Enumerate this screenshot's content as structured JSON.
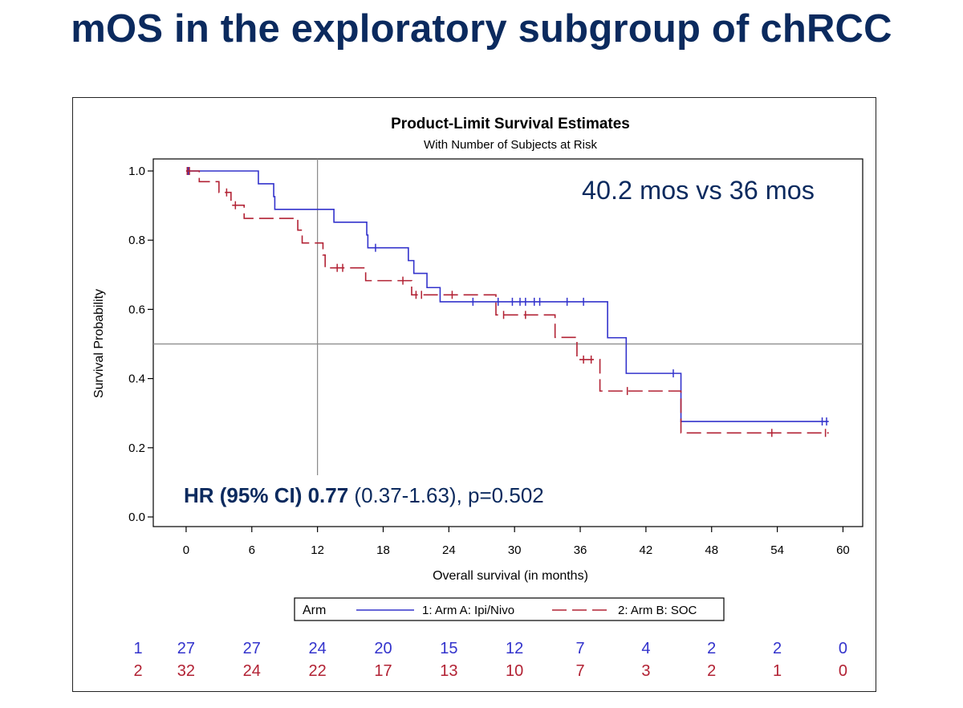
{
  "slide": {
    "title": "mOS in the exploratory subgroup of chRCC"
  },
  "chart_data": {
    "type": "line",
    "title": "Product-Limit Survival Estimates",
    "subtitle": "With Number of Subjects at Risk",
    "xlabel": "Overall survival (in months)",
    "ylabel": "Survival Probability",
    "xlim": [
      0,
      60
    ],
    "ylim": [
      0.0,
      1.0
    ],
    "xticks": [
      0,
      6,
      12,
      18,
      24,
      30,
      36,
      42,
      48,
      54,
      60
    ],
    "yticks": [
      "0.0",
      "0.2",
      "0.4",
      "0.6",
      "0.8",
      "1.0"
    ],
    "reference_lines": {
      "x": 12,
      "y": 0.5
    },
    "annotation_median": "40.2 mos vs 36 mos",
    "annotation_hr": {
      "bold": "HR (95% CI) 0.77",
      "rest": " (0.37-1.63), p=0.502"
    },
    "legend": {
      "title": "Arm",
      "position": "bottom"
    },
    "series": [
      {
        "name": "1: Arm A: Ipi/Nivo",
        "risk_label": "1",
        "color": "#3333cc",
        "dash": "solid",
        "steps": [
          [
            0,
            1.0
          ],
          [
            6.6,
            0.963
          ],
          [
            8.0,
            0.926
          ],
          [
            8.1,
            0.889
          ],
          [
            13.5,
            0.852
          ],
          [
            16.5,
            0.815
          ],
          [
            16.6,
            0.778
          ],
          [
            20.3,
            0.741
          ],
          [
            20.8,
            0.704
          ],
          [
            22.0,
            0.663
          ],
          [
            23.2,
            0.622
          ],
          [
            38.5,
            0.518
          ],
          [
            40.2,
            0.415
          ],
          [
            45.2,
            0.276
          ],
          [
            58.7,
            0.276
          ]
        ],
        "censors": [
          [
            0.2,
            1.0
          ],
          [
            17.3,
            0.778
          ],
          [
            26.2,
            0.622
          ],
          [
            28.5,
            0.622
          ],
          [
            29.8,
            0.622
          ],
          [
            30.5,
            0.622
          ],
          [
            31.0,
            0.622
          ],
          [
            31.8,
            0.622
          ],
          [
            32.3,
            0.622
          ],
          [
            34.8,
            0.622
          ],
          [
            36.3,
            0.622
          ],
          [
            44.5,
            0.415
          ],
          [
            58.1,
            0.276
          ],
          [
            58.5,
            0.276
          ]
        ],
        "at_risk": [
          27,
          27,
          24,
          20,
          15,
          12,
          7,
          4,
          2,
          2,
          0
        ]
      },
      {
        "name": "2: Arm B: SOC",
        "risk_label": "2",
        "color": "#b22234",
        "dash": "dashed",
        "steps": [
          [
            0,
            1.0
          ],
          [
            1.2,
            0.969
          ],
          [
            3.0,
            0.938
          ],
          [
            4.1,
            0.901
          ],
          [
            5.3,
            0.863
          ],
          [
            10.2,
            0.829
          ],
          [
            10.6,
            0.792
          ],
          [
            12.5,
            0.757
          ],
          [
            12.7,
            0.72
          ],
          [
            16.4,
            0.683
          ],
          [
            20.6,
            0.642
          ],
          [
            28.3,
            0.584
          ],
          [
            33.7,
            0.519
          ],
          [
            35.7,
            0.455
          ],
          [
            37.8,
            0.364
          ],
          [
            45.2,
            0.243
          ],
          [
            58.7,
            0.243
          ]
        ],
        "censors": [
          [
            0.1,
            1.0
          ],
          [
            0.3,
            1.0
          ],
          [
            3.7,
            0.938
          ],
          [
            4.5,
            0.901
          ],
          [
            13.8,
            0.72
          ],
          [
            14.3,
            0.72
          ],
          [
            19.8,
            0.683
          ],
          [
            21.0,
            0.642
          ],
          [
            21.5,
            0.642
          ],
          [
            24.3,
            0.642
          ],
          [
            29.0,
            0.584
          ],
          [
            31.0,
            0.584
          ],
          [
            36.3,
            0.455
          ],
          [
            37.0,
            0.455
          ],
          [
            40.3,
            0.364
          ],
          [
            53.5,
            0.243
          ],
          [
            58.4,
            0.243
          ]
        ],
        "at_risk": [
          32,
          24,
          22,
          17,
          13,
          10,
          7,
          3,
          2,
          1,
          0
        ]
      }
    ]
  }
}
